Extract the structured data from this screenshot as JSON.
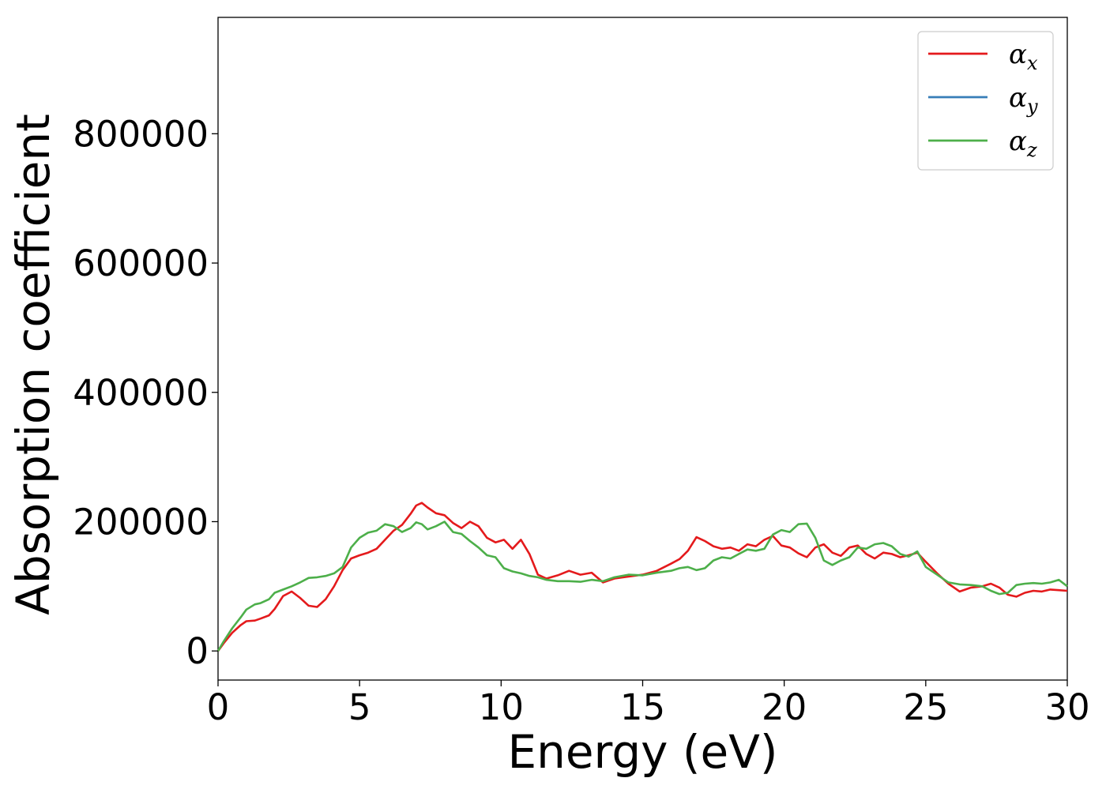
{
  "chart_data": {
    "type": "line",
    "xlabel": "Energy (eV)",
    "ylabel": "Absorption coefficient",
    "xlim": [
      0,
      30
    ],
    "ylim": [
      -45000,
      980000
    ],
    "xticks": [
      0,
      5,
      10,
      15,
      20,
      25,
      30
    ],
    "xtick_labels": [
      "0",
      "5",
      "10",
      "15",
      "20",
      "25",
      "30"
    ],
    "yticks": [
      0,
      200000,
      400000,
      600000,
      800000
    ],
    "ytick_labels": [
      "0",
      "200000",
      "400000",
      "600000",
      "800000"
    ],
    "grid": false,
    "legend_position": "top-right",
    "series": [
      {
        "name": "α",
        "subscript": "x",
        "color": "#e41a1c",
        "x": [
          0,
          0.2,
          0.5,
          0.8,
          1.0,
          1.3,
          1.5,
          1.8,
          2.0,
          2.3,
          2.6,
          2.9,
          3.2,
          3.5,
          3.8,
          4.1,
          4.4,
          4.7,
          5.0,
          5.3,
          5.6,
          5.9,
          6.2,
          6.5,
          6.8,
          7.0,
          7.2,
          7.4,
          7.7,
          8.0,
          8.3,
          8.6,
          8.9,
          9.2,
          9.5,
          9.8,
          10.1,
          10.4,
          10.7,
          11.0,
          11.3,
          11.6,
          12.0,
          12.4,
          12.8,
          13.2,
          13.6,
          14.0,
          14.5,
          15.0,
          15.5,
          16.0,
          16.3,
          16.6,
          16.9,
          17.2,
          17.5,
          17.8,
          18.1,
          18.4,
          18.7,
          19.0,
          19.3,
          19.6,
          19.9,
          20.2,
          20.5,
          20.8,
          21.1,
          21.4,
          21.7,
          22.0,
          22.3,
          22.6,
          22.9,
          23.2,
          23.5,
          23.8,
          24.1,
          24.4,
          24.7,
          25.0,
          25.4,
          25.8,
          26.2,
          26.6,
          27.0,
          27.3,
          27.6,
          27.9,
          28.2,
          28.5,
          28.8,
          29.1,
          29.4,
          29.7,
          30.0
        ],
        "values": [
          0,
          12000,
          28000,
          40000,
          46000,
          47000,
          50000,
          55000,
          65000,
          85000,
          92000,
          82000,
          70000,
          68000,
          80000,
          100000,
          125000,
          143000,
          148000,
          152000,
          158000,
          172000,
          186000,
          195000,
          212000,
          225000,
          229000,
          222000,
          213000,
          210000,
          198000,
          190000,
          200000,
          193000,
          175000,
          168000,
          172000,
          158000,
          172000,
          150000,
          118000,
          112000,
          117000,
          124000,
          118000,
          121000,
          106000,
          112000,
          115000,
          118000,
          124000,
          135000,
          142000,
          155000,
          176000,
          170000,
          162000,
          158000,
          160000,
          155000,
          165000,
          162000,
          172000,
          178000,
          163000,
          160000,
          151000,
          145000,
          160000,
          165000,
          152000,
          147000,
          160000,
          163000,
          150000,
          143000,
          152000,
          150000,
          145000,
          148000,
          152000,
          138000,
          120000,
          104000,
          92000,
          98000,
          100000,
          104000,
          98000,
          87000,
          84000,
          90000,
          93000,
          92000,
          95000,
          94000,
          93000
        ]
      },
      {
        "name": "α",
        "subscript": "y",
        "color": "#377eb8",
        "x": [],
        "values": []
      },
      {
        "name": "α",
        "subscript": "z",
        "color": "#4daf4a",
        "x": [
          0,
          0.2,
          0.5,
          0.8,
          1.0,
          1.3,
          1.5,
          1.8,
          2.0,
          2.3,
          2.6,
          2.9,
          3.2,
          3.5,
          3.8,
          4.1,
          4.4,
          4.7,
          5.0,
          5.3,
          5.6,
          5.9,
          6.2,
          6.5,
          6.8,
          7.0,
          7.2,
          7.4,
          7.7,
          8.0,
          8.3,
          8.6,
          8.9,
          9.2,
          9.5,
          9.8,
          10.1,
          10.4,
          10.7,
          11.0,
          11.3,
          11.6,
          12.0,
          12.4,
          12.8,
          13.2,
          13.6,
          14.0,
          14.5,
          15.0,
          15.5,
          16.0,
          16.3,
          16.6,
          16.9,
          17.2,
          17.5,
          17.8,
          18.1,
          18.4,
          18.7,
          19.0,
          19.3,
          19.6,
          19.9,
          20.2,
          20.5,
          20.8,
          21.1,
          21.4,
          21.7,
          22.0,
          22.3,
          22.6,
          22.9,
          23.2,
          23.5,
          23.8,
          24.1,
          24.4,
          24.7,
          25.0,
          25.4,
          25.8,
          26.2,
          26.6,
          27.0,
          27.3,
          27.6,
          27.9,
          28.2,
          28.5,
          28.8,
          29.1,
          29.4,
          29.7,
          30.0
        ],
        "values": [
          0,
          15000,
          35000,
          52000,
          64000,
          72000,
          74000,
          80000,
          90000,
          95000,
          100000,
          106000,
          113000,
          114000,
          116000,
          120000,
          130000,
          160000,
          175000,
          183000,
          186000,
          196000,
          193000,
          184000,
          190000,
          199000,
          196000,
          188000,
          193000,
          200000,
          184000,
          181000,
          170000,
          160000,
          148000,
          145000,
          128000,
          123000,
          120000,
          116000,
          114000,
          110000,
          108000,
          108000,
          107000,
          110000,
          108000,
          114000,
          118000,
          117000,
          121000,
          124000,
          128000,
          130000,
          125000,
          128000,
          140000,
          145000,
          143000,
          150000,
          157000,
          155000,
          158000,
          180000,
          187000,
          184000,
          196000,
          197000,
          175000,
          140000,
          133000,
          140000,
          145000,
          160000,
          158000,
          165000,
          167000,
          162000,
          150000,
          146000,
          154000,
          130000,
          118000,
          106000,
          103000,
          102000,
          100000,
          93000,
          88000,
          90000,
          102000,
          104000,
          105000,
          104000,
          106000,
          110000,
          100000
        ]
      }
    ]
  }
}
